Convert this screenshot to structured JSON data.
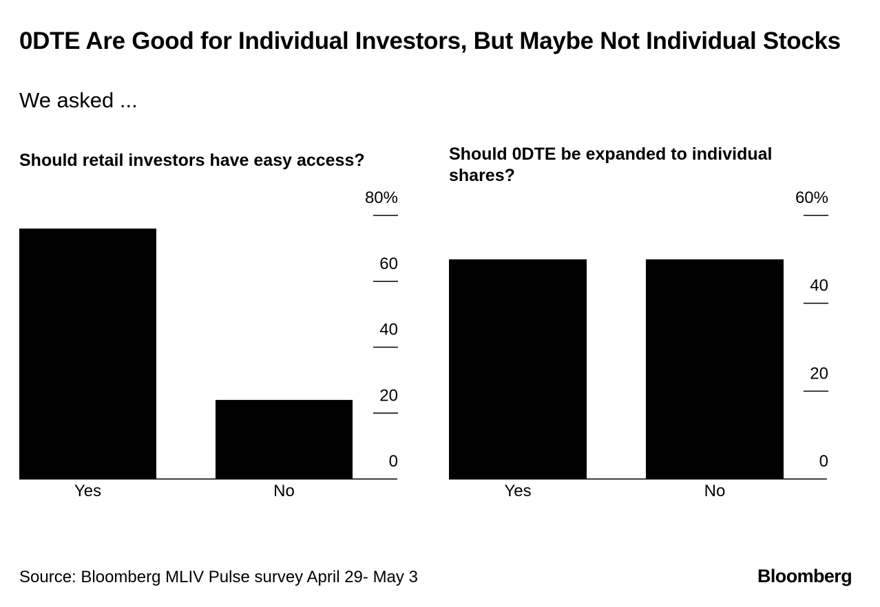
{
  "title": "0DTE Are Good for Individual Investors, But Maybe Not Individual Stocks",
  "subtitle": "We asked ...",
  "source": "Source: Bloomberg MLIV Pulse survey April 29- May 3",
  "logo": "Bloomberg",
  "colors": {
    "bar": "#000000",
    "background": "#ffffff"
  },
  "chart_data": [
    {
      "type": "bar",
      "title": "Should retail investors have easy access?",
      "categories": [
        "Yes",
        "No"
      ],
      "values": [
        76,
        24
      ],
      "ylim": [
        0,
        80
      ],
      "yticks": [
        0,
        20,
        40,
        60,
        80
      ],
      "ytick_labels": [
        "0",
        "20",
        "40",
        "60",
        "80%"
      ],
      "xlabel": "",
      "ylabel": "",
      "axis_side": "right"
    },
    {
      "type": "bar",
      "title": "Should 0DTE be expanded to individual shares?",
      "categories": [
        "Yes",
        "No"
      ],
      "values": [
        50,
        50
      ],
      "ylim": [
        0,
        60
      ],
      "yticks": [
        0,
        20,
        40,
        60
      ],
      "ytick_labels": [
        "0",
        "20",
        "40",
        "60%"
      ],
      "xlabel": "",
      "ylabel": "",
      "axis_side": "right"
    }
  ]
}
